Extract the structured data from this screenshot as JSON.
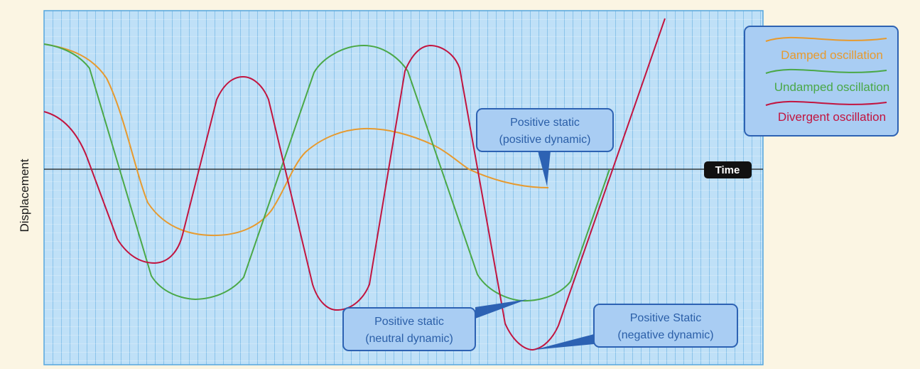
{
  "axis": {
    "ylabel": "Displacement",
    "xlabel": "Time"
  },
  "legend": {
    "items": [
      {
        "label": "Damped oscillation",
        "color": "#e79a2e"
      },
      {
        "label": "Undamped oscillation",
        "color": "#4aa847"
      },
      {
        "label": "Divergent oscillation",
        "color": "#c2143f"
      }
    ]
  },
  "callouts": {
    "positive": {
      "line1": "Positive static",
      "line2": "(positive dynamic)"
    },
    "neutral": {
      "line1": "Positive static",
      "line2": "(neutral dynamic)"
    },
    "negative": {
      "line1": "Positive Static",
      "line2": "(negative dynamic)"
    }
  },
  "colors": {
    "grid_bg": "#bfe0f7",
    "grid_line": "#54a6de",
    "box_fill": "#a9cdf3",
    "box_stroke": "#2d62b3",
    "callout_text": "#2b5fa8",
    "time_badge": "#111111"
  }
}
